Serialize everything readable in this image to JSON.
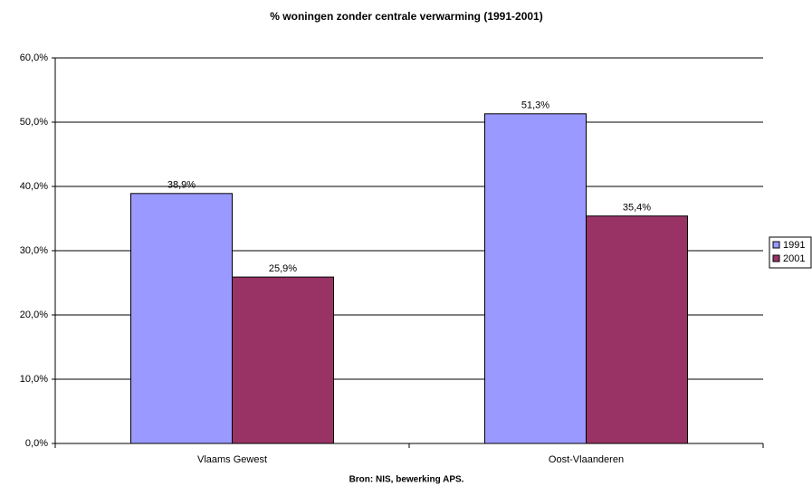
{
  "chart_data": {
    "type": "bar",
    "title": "% woningen zonder centrale verwarming (1991-2001)",
    "x_label": "Bron: NIS, bewerking APS.",
    "categories": [
      "Vlaams Gewest",
      "Oost-Vlaanderen"
    ],
    "series": [
      {
        "name": "1991",
        "color": "#9999ff",
        "values": [
          38.9,
          51.3
        ],
        "value_labels": [
          "38,9%",
          "51,3%"
        ]
      },
      {
        "name": "2001",
        "color": "#993366",
        "values": [
          25.9,
          35.4
        ],
        "value_labels": [
          "25,9%",
          "35,4%"
        ]
      }
    ],
    "ylim": [
      0,
      60
    ],
    "yticks": [
      {
        "value": 0,
        "label": "0,0%"
      },
      {
        "value": 10,
        "label": "10,0%"
      },
      {
        "value": 20,
        "label": "20,0%"
      },
      {
        "value": 30,
        "label": "30,0%"
      },
      {
        "value": 40,
        "label": "40,0%"
      },
      {
        "value": 50,
        "label": "50,0%"
      },
      {
        "value": 60,
        "label": "60,0%"
      }
    ],
    "grid": true,
    "legend": "right"
  }
}
